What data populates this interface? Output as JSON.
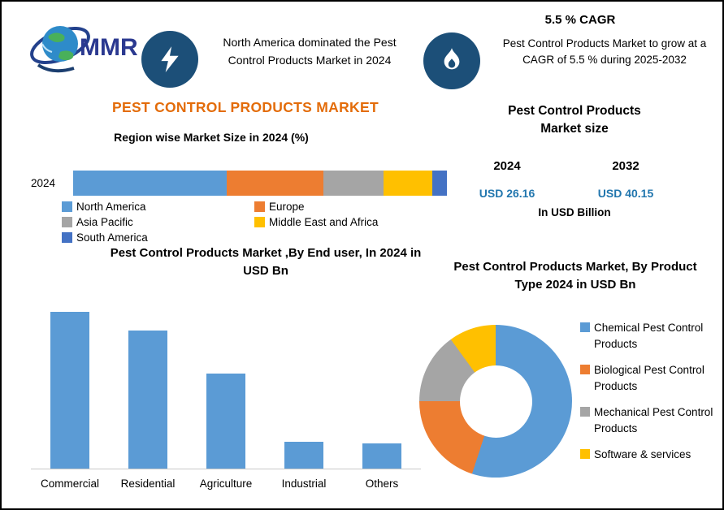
{
  "colors": {
    "accent_orange_title": "#E36C0A",
    "icon_circle_navy": "#1C4F78",
    "value_blue": "#2176AE",
    "series_blue": "#5B9BD5",
    "series_orange": "#ED7D31",
    "series_gray": "#A5A5A5",
    "series_yellow": "#FFC000",
    "series_dark_blue": "#4472C4"
  },
  "header": {
    "logo_text": "MMR",
    "highlight": "North America dominated the Pest Control Products Market in 2024",
    "cagr_title": "5.5 % CAGR",
    "cagr_text": "Pest Control Products Market to grow at a CAGR of 5.5 % during 2025-2032"
  },
  "main_title": "PEST CONTROL PRODUCTS MARKET",
  "market_size": {
    "title_line1": "Pest Control Products",
    "title_line2": "Market size",
    "year_2024": "2024",
    "year_2032": "2032",
    "value_2024": "USD 26.16",
    "value_2032": "USD 40.15",
    "unit": "In USD Billion"
  },
  "chart_data": [
    {
      "name": "region_share",
      "type": "bar",
      "subtype": "horizontal-stacked",
      "title": "Region wise Market Size in 2024 (%)",
      "row_label": "2024",
      "unit": "%",
      "legend_position": "bottom",
      "segments": [
        {
          "label": "North America",
          "value": 41,
          "color": "#5B9BD5"
        },
        {
          "label": "Europe",
          "value": 26,
          "color": "#ED7D31"
        },
        {
          "label": "Asia Pacific",
          "value": 16,
          "color": "#A5A5A5"
        },
        {
          "label": "Middle East and Africa",
          "value": 13,
          "color": "#FFC000"
        },
        {
          "label": "South America",
          "value": 4,
          "color": "#4472C4"
        }
      ]
    },
    {
      "name": "end_user",
      "type": "bar",
      "title": "Pest Control Products Market ,By End user, In 2024 in USD Bn",
      "categories": [
        "Commercial",
        "Residential",
        "Agriculture",
        "Industrial",
        "Others"
      ],
      "values": [
        9.4,
        8.3,
        5.7,
        1.6,
        1.5
      ],
      "ylim": [
        0,
        10
      ],
      "grid": false,
      "bar_color": "#5B9BD5",
      "unit": "USD Bn"
    },
    {
      "name": "product_type",
      "type": "pie",
      "subtype": "donut",
      "title": "Pest Control Products Market, By Product Type 2024 in USD Bn",
      "start_angle_deg": 0,
      "legend_position": "right",
      "slices": [
        {
          "label": "Chemical Pest Control Products",
          "value": 55,
          "color": "#5B9BD5"
        },
        {
          "label": "Biological Pest Control Products",
          "value": 20,
          "color": "#ED7D31"
        },
        {
          "label": "Mechanical Pest Control Products",
          "value": 15,
          "color": "#A5A5A5"
        },
        {
          "label": "Software & services",
          "value": 10,
          "color": "#FFC000"
        }
      ]
    }
  ]
}
